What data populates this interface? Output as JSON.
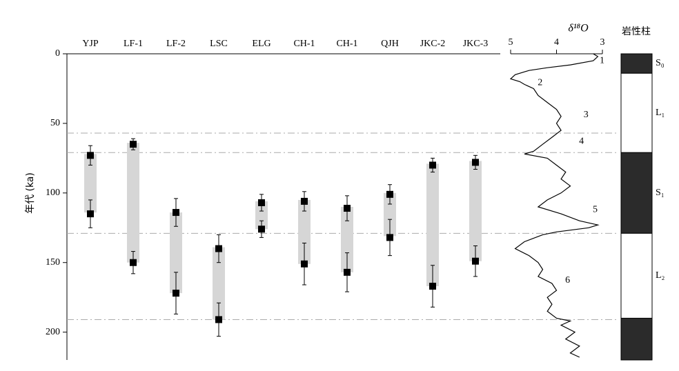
{
  "chart_data": [
    {
      "type": "range",
      "ylabel": "年代 (ka)",
      "categories": [
        "YJP",
        "LF-1",
        "LF-2",
        "LSC",
        "ELG",
        "CH-1",
        "CH-1",
        "QJH",
        "JKC-2",
        "JKC-3"
      ],
      "ylim": [
        0,
        220
      ],
      "yticks": [
        0,
        50,
        100,
        150,
        200
      ],
      "bands": [
        [
          72,
          114
        ],
        [
          64,
          150
        ],
        [
          114,
          172
        ],
        [
          139,
          191
        ],
        [
          106,
          126
        ],
        [
          105,
          151
        ],
        [
          110,
          157
        ],
        [
          100,
          131
        ],
        [
          79,
          167
        ],
        [
          77,
          149
        ]
      ],
      "band_color": "#d6d6d6",
      "young": {
        "values": [
          73,
          65,
          114,
          140,
          107,
          106,
          111,
          101,
          80,
          78
        ],
        "errors": [
          7,
          4,
          10,
          10,
          6,
          7,
          9,
          7,
          5,
          5
        ]
      },
      "old": {
        "values": [
          115,
          150,
          172,
          191,
          126,
          151,
          157,
          132,
          167,
          149
        ],
        "errors": [
          10,
          8,
          15,
          12,
          6,
          15,
          14,
          13,
          15,
          11
        ]
      },
      "marker_color": "#000000",
      "reference_lines": [
        57,
        71,
        129,
        191
      ]
    },
    {
      "type": "line",
      "title": "δ¹⁸O",
      "xlim": [
        5,
        3
      ],
      "xticks": [
        5,
        4,
        3
      ],
      "ylim": [
        0,
        220
      ],
      "color": "#000000",
      "ages": [
        0,
        2,
        5,
        8,
        10,
        12,
        15,
        18,
        20,
        22,
        25,
        30,
        35,
        40,
        45,
        50,
        55,
        60,
        65,
        70,
        72,
        75,
        80,
        85,
        90,
        95,
        100,
        105,
        110,
        115,
        120,
        123,
        125,
        128,
        130,
        135,
        140,
        145,
        150,
        155,
        160,
        165,
        170,
        175,
        180,
        185,
        190,
        192,
        195,
        200,
        205,
        210,
        215,
        218
      ],
      "values": [
        3.2,
        3.1,
        3.2,
        3.7,
        4.2,
        4.6,
        4.9,
        5.0,
        4.8,
        4.7,
        4.5,
        4.4,
        4.2,
        4.0,
        3.9,
        4.0,
        3.9,
        4.1,
        4.3,
        4.5,
        4.7,
        4.2,
        4.0,
        3.8,
        3.9,
        3.7,
        3.9,
        4.2,
        4.4,
        3.9,
        3.5,
        3.1,
        3.3,
        4.0,
        4.3,
        4.7,
        4.9,
        4.6,
        4.4,
        4.3,
        4.4,
        4.1,
        4.0,
        4.2,
        4.1,
        4.2,
        4.0,
        3.7,
        3.9,
        3.6,
        3.8,
        3.5,
        3.7,
        3.5
      ],
      "annotations": [
        {
          "label": "1",
          "age": 5,
          "value": 3.15
        },
        {
          "label": "2",
          "age": 21,
          "value": 4.5
        },
        {
          "label": "3",
          "age": 44,
          "value": 3.5
        },
        {
          "label": "4",
          "age": 63,
          "value": 3.6
        },
        {
          "label": "5",
          "age": 112,
          "value": 3.3
        },
        {
          "label": "6",
          "age": 163,
          "value": 3.9
        }
      ]
    },
    {
      "type": "lithology",
      "title": "岩性柱",
      "ylim": [
        0,
        220
      ],
      "segments": [
        {
          "label": "S₀",
          "from": 0,
          "to": 14,
          "color": "#2b2b2b"
        },
        {
          "label": "L₁",
          "from": 14,
          "to": 71,
          "color": "#ffffff"
        },
        {
          "label": "S₁",
          "from": 71,
          "to": 129,
          "color": "#2b2b2b"
        },
        {
          "label": "L₂",
          "from": 129,
          "to": 190,
          "color": "#ffffff"
        },
        {
          "label": null,
          "from": 190,
          "to": 220,
          "color": "#2b2b2b"
        }
      ]
    }
  ]
}
